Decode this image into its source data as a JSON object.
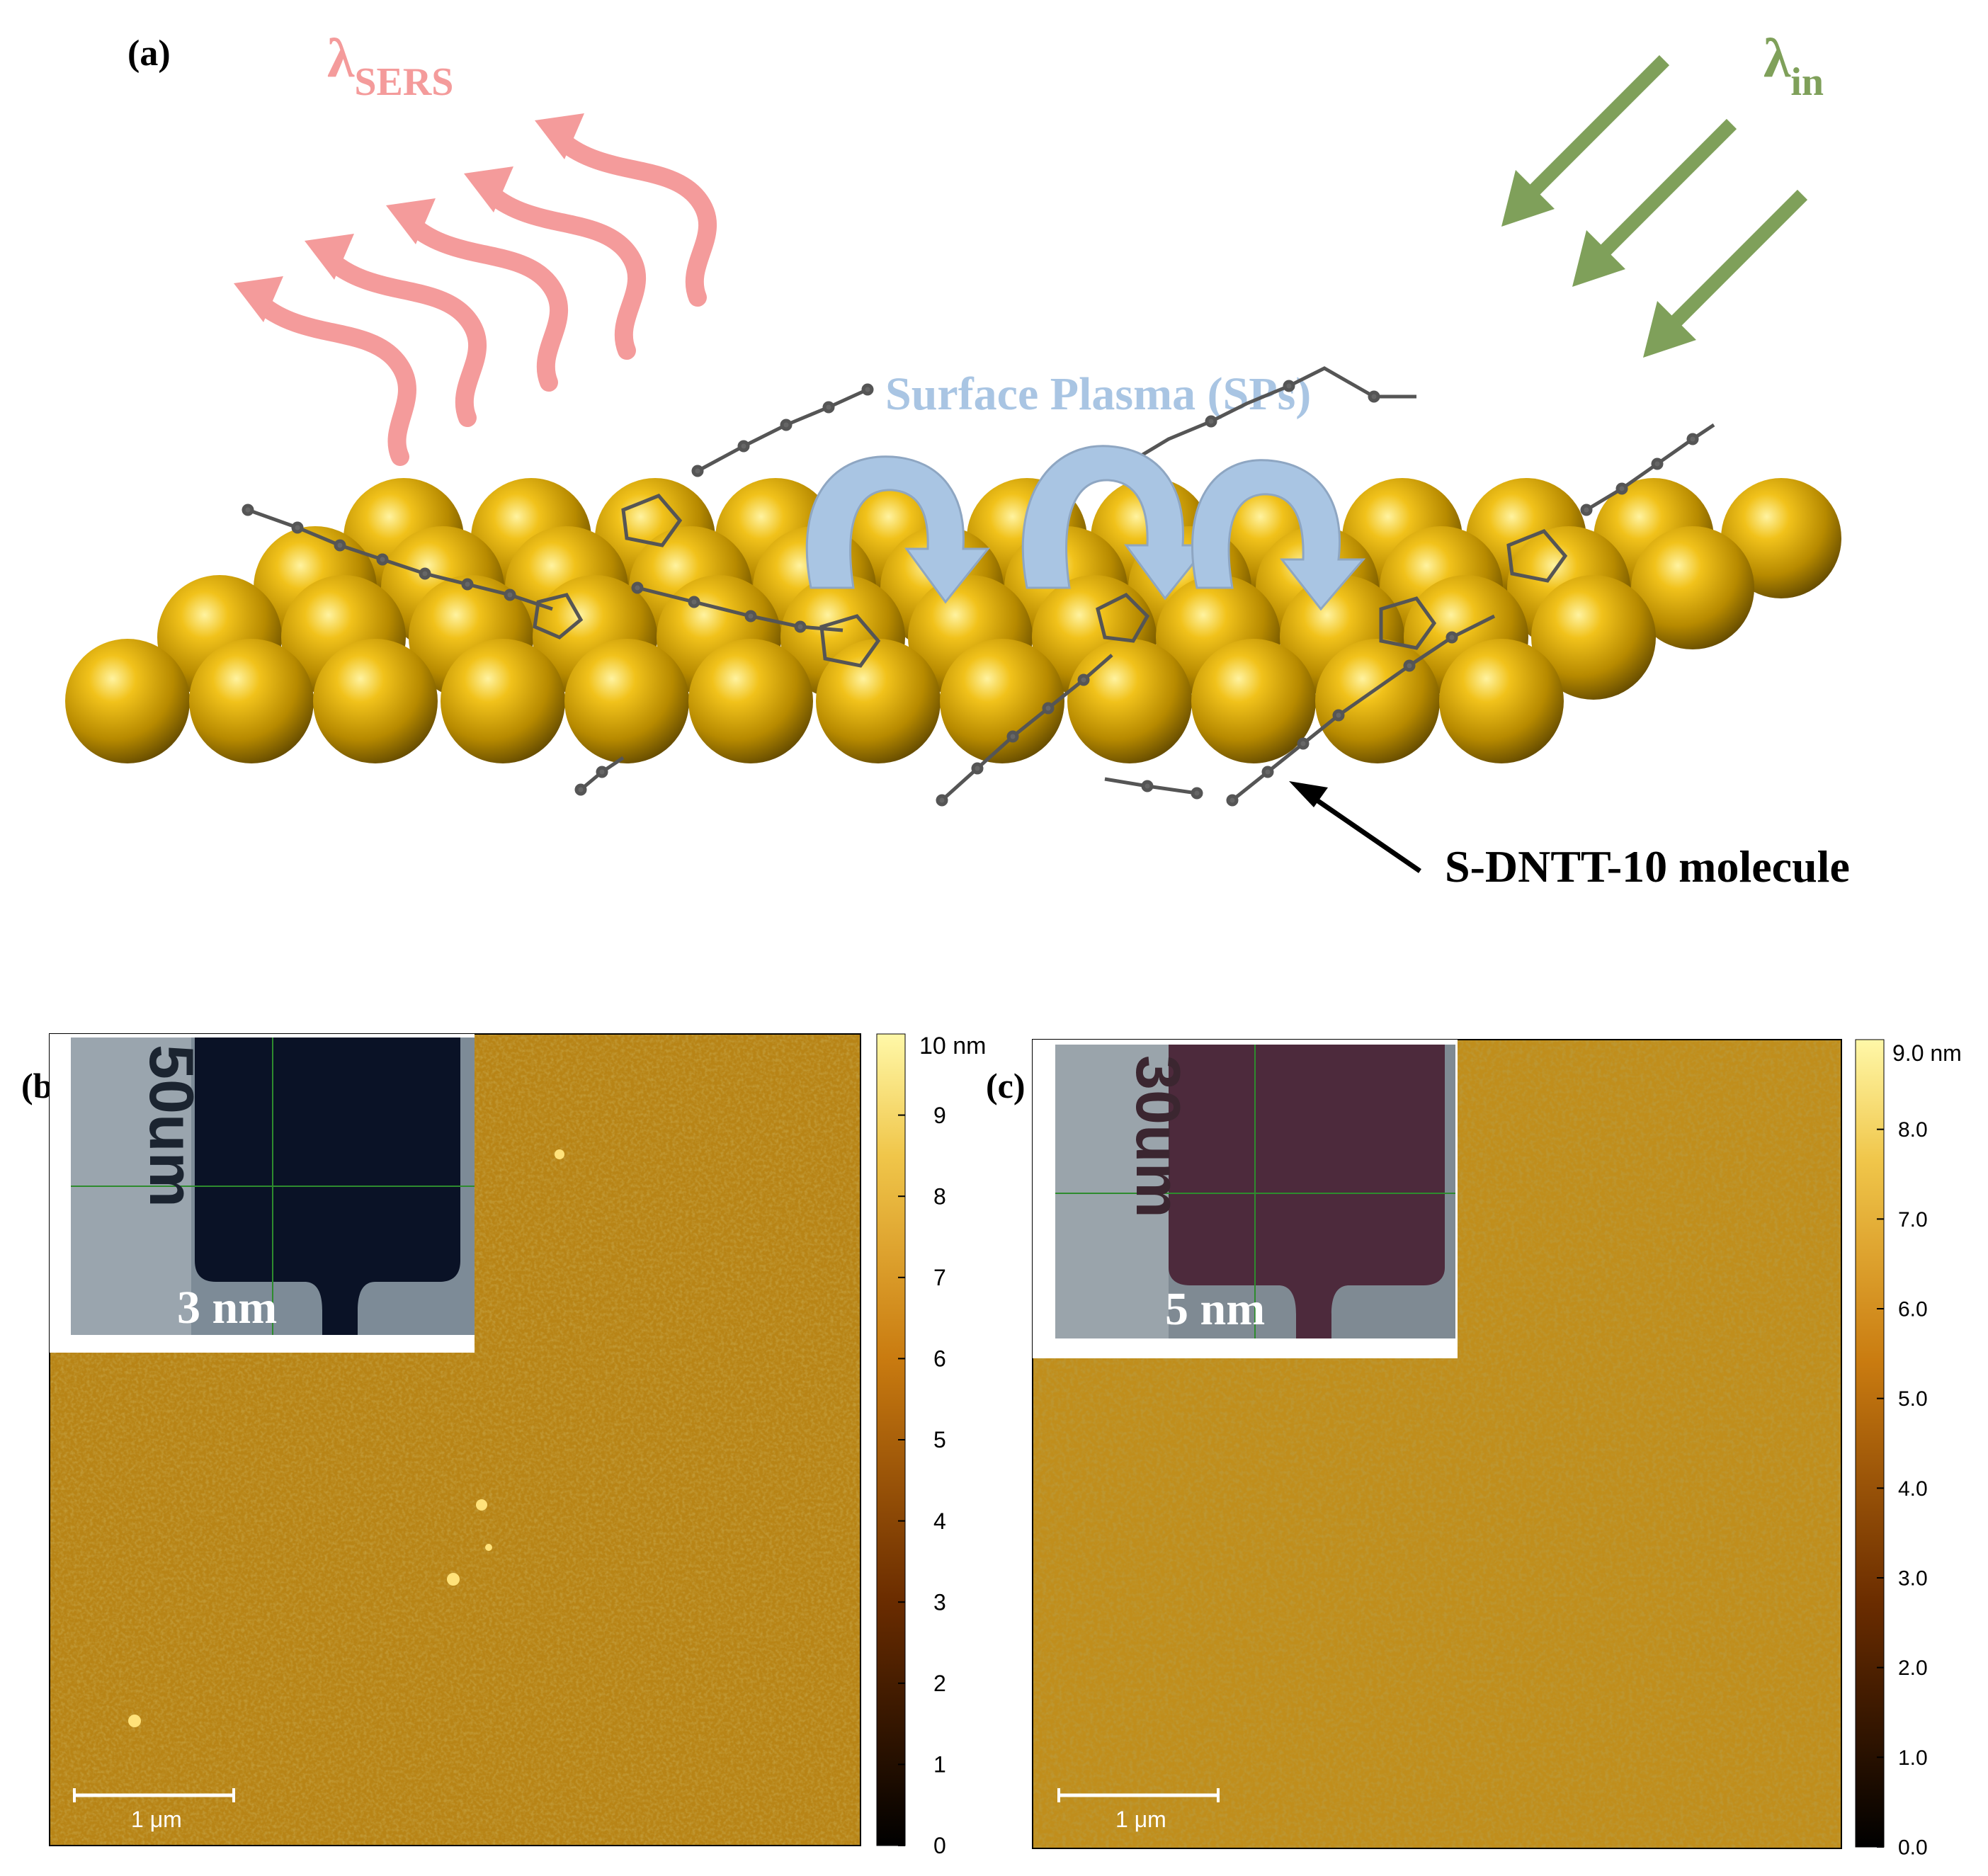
{
  "panel_a": {
    "label": "(a)",
    "lambda_sers": {
      "symbol": "λ",
      "sub": "SERS"
    },
    "lambda_in": {
      "symbol": "λ",
      "sub": "in"
    },
    "sp_label": "Surface Plasma (SPs)",
    "molecule_label": "S-DNTT-10 molecule",
    "colors": {
      "sers": "#f49b9b",
      "incident": "#7fa05a",
      "sp": "#a9c5e3",
      "gold": "#c9a000"
    }
  },
  "panel_b": {
    "label": "(b)",
    "thickness": "3 nm",
    "inset_text": "50um",
    "scalebar": "1 μm",
    "colorbar_top": "10 nm",
    "colorbar_ticks": [
      "9",
      "8",
      "7",
      "6",
      "5",
      "4",
      "3",
      "2",
      "1",
      "0"
    ]
  },
  "panel_c": {
    "label": "(c)",
    "thickness": "5 nm",
    "inset_text": "30um",
    "scalebar": "1 μm",
    "colorbar_top": "9.0 nm",
    "colorbar_ticks": [
      "8.0",
      "7.0",
      "6.0",
      "5.0",
      "4.0",
      "3.0",
      "2.0",
      "1.0",
      "0.0"
    ]
  }
}
